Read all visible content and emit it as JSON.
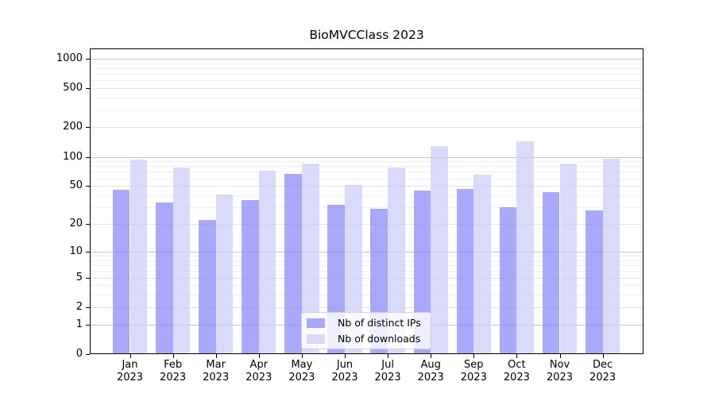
{
  "chart_data": {
    "type": "bar",
    "title": "BioMVCClass 2023",
    "yscale": "log1p",
    "ylim": [
      0,
      1250
    ],
    "y_ticks": [
      0,
      1,
      2,
      5,
      10,
      20,
      50,
      100,
      200,
      500,
      1000
    ],
    "grid": true,
    "legend_position": "bottom-center",
    "categories": [
      {
        "month": "Jan",
        "year": "2023"
      },
      {
        "month": "Feb",
        "year": "2023"
      },
      {
        "month": "Mar",
        "year": "2023"
      },
      {
        "month": "Apr",
        "year": "2023"
      },
      {
        "month": "May",
        "year": "2023"
      },
      {
        "month": "Jun",
        "year": "2023"
      },
      {
        "month": "Jul",
        "year": "2023"
      },
      {
        "month": "Aug",
        "year": "2023"
      },
      {
        "month": "Sep",
        "year": "2023"
      },
      {
        "month": "Oct",
        "year": "2023"
      },
      {
        "month": "Nov",
        "year": "2023"
      },
      {
        "month": "Dec",
        "year": "2023"
      }
    ],
    "series": [
      {
        "name": "Nb of distinct IPs",
        "color": "#8888fa",
        "fill_alpha": 0.72,
        "values": [
          46,
          34,
          22,
          36,
          67,
          32,
          29,
          45,
          47,
          30,
          43,
          28
        ]
      },
      {
        "name": "Nb of downloads",
        "color": "#ccccfa",
        "fill_alpha": 0.72,
        "values": [
          94,
          77,
          41,
          72,
          86,
          51,
          78,
          130,
          65,
          144,
          85,
          96
        ]
      }
    ]
  }
}
